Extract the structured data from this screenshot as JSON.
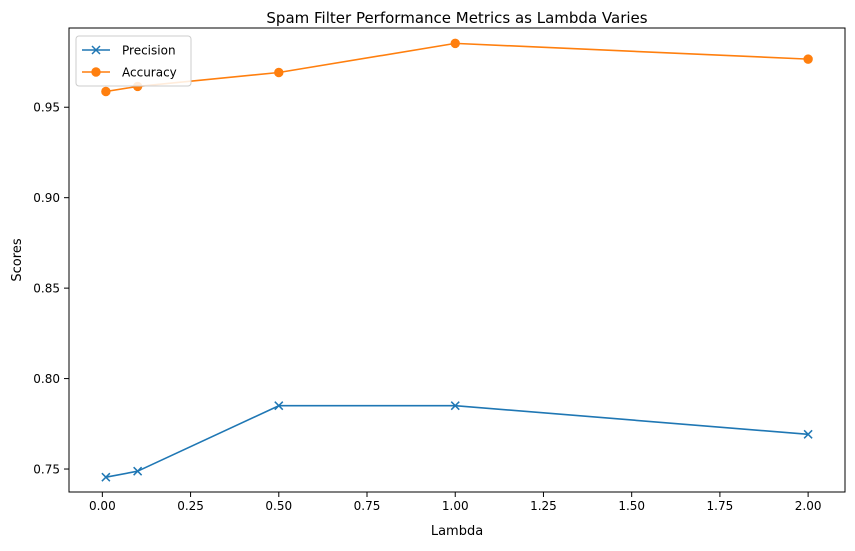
{
  "chart_data": {
    "type": "line",
    "title": "Spam Filter Performance Metrics as Lambda Varies",
    "xlabel": "Lambda",
    "ylabel": "Scores",
    "xlim": [
      -0.0945,
      2.1045
    ],
    "ylim": [
      0.7373,
      0.9938
    ],
    "xticks": [
      0.0,
      0.25,
      0.5,
      0.75,
      1.0,
      1.25,
      1.5,
      1.75,
      2.0
    ],
    "xtick_labels": [
      "0.00",
      "0.25",
      "0.50",
      "0.75",
      "1.00",
      "1.25",
      "1.50",
      "1.75",
      "2.00"
    ],
    "yticks": [
      0.75,
      0.8,
      0.85,
      0.9,
      0.95
    ],
    "ytick_labels": [
      "0.75",
      "0.80",
      "0.85",
      "0.90",
      "0.95"
    ],
    "grid": false,
    "legend_position": "top-left",
    "x": [
      0.01,
      0.1,
      0.5,
      1.0,
      2.0
    ],
    "series": [
      {
        "name": "Precision",
        "values": [
          0.7455,
          0.7488,
          0.785,
          0.785,
          0.7692
        ],
        "color": "#1f77b4",
        "marker": "x"
      },
      {
        "name": "Accuracy",
        "values": [
          0.9587,
          0.9615,
          0.9692,
          0.9853,
          0.9766
        ],
        "color": "#ff7f0e",
        "marker": "o"
      }
    ]
  }
}
